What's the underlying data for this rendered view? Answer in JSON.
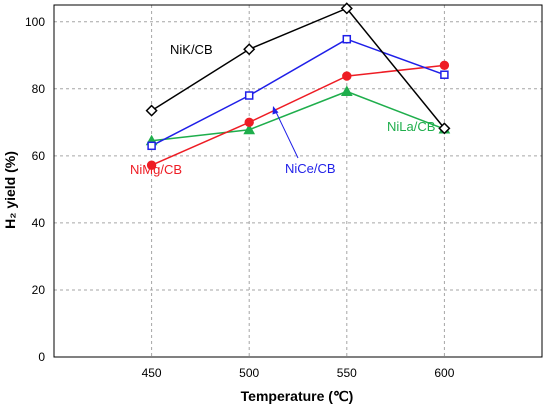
{
  "chart_data": {
    "type": "line",
    "xlabel": "Temperature (℃)",
    "ylabel": "H₂ yield (%)",
    "x": [
      450,
      500,
      550,
      600
    ],
    "xlim": [
      400,
      650
    ],
    "ylim": [
      0,
      105
    ],
    "xticks": [
      450,
      500,
      550,
      600
    ],
    "yticks": [
      0,
      20,
      40,
      60,
      80,
      100
    ],
    "grid": true,
    "legend": "inline labels",
    "series": [
      {
        "name": "NiK/CB",
        "color": "#000000",
        "marker": "diamond-open",
        "values": [
          73.5,
          91.8,
          104.0,
          68.2
        ]
      },
      {
        "name": "NiCe/CB",
        "color": "#1f1fe8",
        "marker": "square-open",
        "values": [
          63.0,
          78.0,
          94.8,
          84.2
        ]
      },
      {
        "name": "NiMg/CB",
        "color": "#ee1c24",
        "marker": "circle-filled",
        "values": [
          57.2,
          70.0,
          83.8,
          87.0
        ]
      },
      {
        "name": "NiLa/CB",
        "color": "#1fae4c",
        "marker": "triangle-filled",
        "values": [
          64.5,
          67.8,
          79.2,
          68.0
        ]
      }
    ]
  }
}
